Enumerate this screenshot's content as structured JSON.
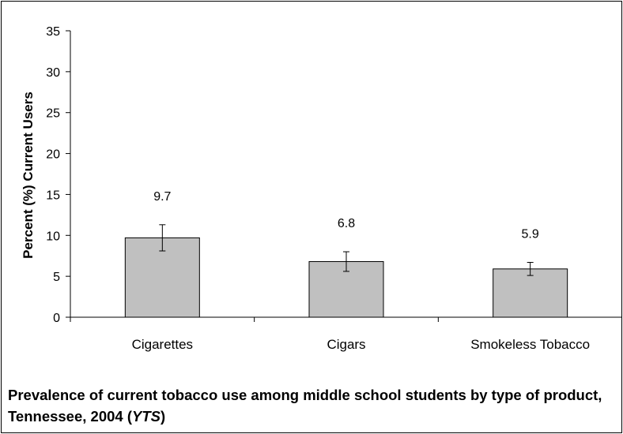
{
  "chart_data": {
    "type": "bar",
    "categories": [
      "Cigarettes",
      "Cigars",
      "Smokeless Tobacco"
    ],
    "values": [
      9.7,
      6.8,
      5.9
    ],
    "data_labels": [
      "9.7",
      "6.8",
      "5.9"
    ],
    "error_bars": [
      {
        "low": 8.1,
        "high": 11.3
      },
      {
        "low": 5.6,
        "high": 8.0
      },
      {
        "low": 5.1,
        "high": 6.7
      }
    ],
    "ylabel": "Percent (%) Current Users",
    "xlabel": "",
    "ylim": [
      0,
      35
    ],
    "yticks": [
      0,
      5,
      10,
      15,
      20,
      25,
      30,
      35
    ],
    "ytick_labels": [
      "0",
      "5",
      "10",
      "15",
      "20",
      "25",
      "30",
      "35"
    ],
    "grid": false,
    "bar_color": "#c0c0c0"
  },
  "caption": {
    "text": "Prevalence of current tobacco use among middle school students by type of product, Tennessee, 2004 (",
    "italic": "YTS",
    "end": ")"
  }
}
